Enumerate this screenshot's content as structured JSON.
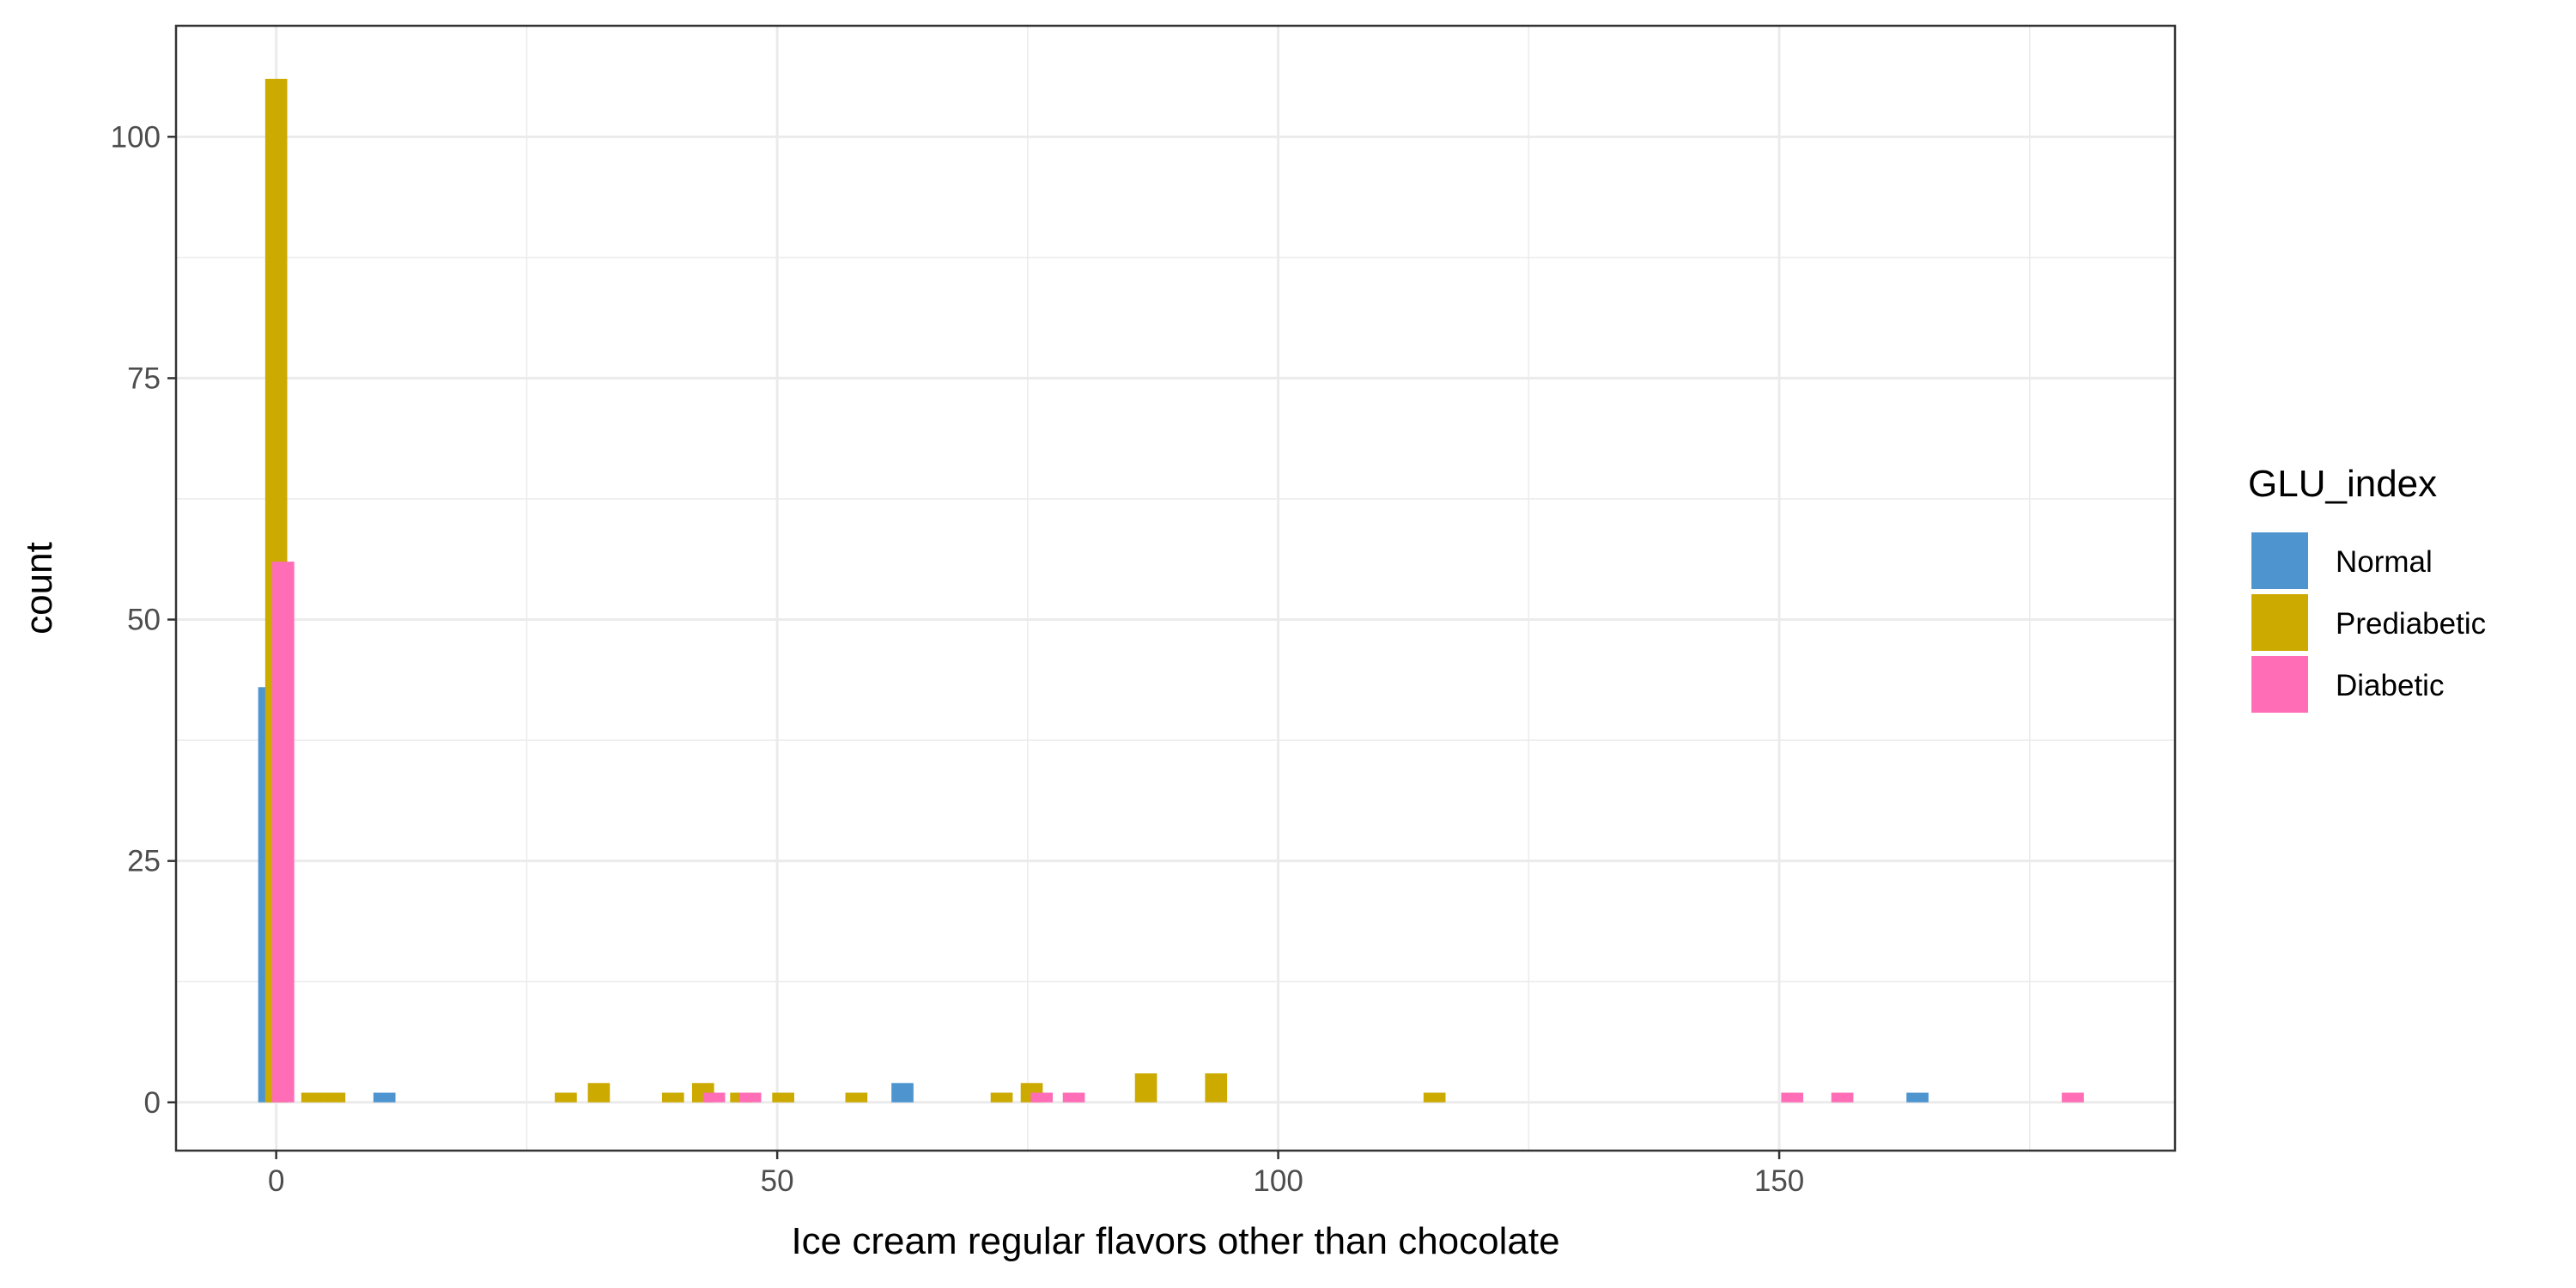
{
  "chart_data": {
    "type": "bar",
    "title": "",
    "xlabel": "Ice cream regular flavors other than chocolate",
    "ylabel": "count",
    "xlim": [
      -10,
      189.5
    ],
    "ylim": [
      -5,
      111.5
    ],
    "x_ticks": [
      0,
      50,
      100,
      150
    ],
    "y_ticks": [
      0,
      25,
      50,
      75,
      100
    ],
    "x_minor_ticks": [
      25,
      75,
      125,
      175
    ],
    "y_minor_ticks": [
      12.5,
      37.5,
      62.5,
      87.5
    ],
    "grid": true,
    "bar_width": 2.2,
    "legend": {
      "title": "GLU_index",
      "position": "right",
      "entries": [
        {
          "label": "Normal",
          "color": "#4E95D0"
        },
        {
          "label": "Prediabetic",
          "color": "#CCAA00"
        },
        {
          "label": "Diabetic",
          "color": "#FF6DB6"
        }
      ]
    },
    "series": [
      {
        "name": "Normal",
        "color": "#4E95D0",
        "points": [
          {
            "x": -0.7,
            "y": 43
          },
          {
            "x": 10.8,
            "y": 1
          },
          {
            "x": 62.5,
            "y": 2
          },
          {
            "x": 163.8,
            "y": 1
          }
        ]
      },
      {
        "name": "Prediabetic",
        "color": "#CCAA00",
        "points": [
          {
            "x": 0,
            "y": 106
          },
          {
            "x": 3.6,
            "y": 1
          },
          {
            "x": 5.8,
            "y": 1
          },
          {
            "x": 28.9,
            "y": 1
          },
          {
            "x": 32.2,
            "y": 2
          },
          {
            "x": 39.6,
            "y": 1
          },
          {
            "x": 42.6,
            "y": 2
          },
          {
            "x": 46.4,
            "y": 1
          },
          {
            "x": 50.6,
            "y": 1
          },
          {
            "x": 57.9,
            "y": 1
          },
          {
            "x": 72.4,
            "y": 1
          },
          {
            "x": 75.4,
            "y": 2
          },
          {
            "x": 86.8,
            "y": 3
          },
          {
            "x": 93.8,
            "y": 3
          },
          {
            "x": 115.6,
            "y": 1
          }
        ]
      },
      {
        "name": "Diabetic",
        "color": "#FF6DB6",
        "points": [
          {
            "x": 0.7,
            "y": 56
          },
          {
            "x": 43.7,
            "y": 1
          },
          {
            "x": 47.3,
            "y": 1
          },
          {
            "x": 76.4,
            "y": 1
          },
          {
            "x": 79.6,
            "y": 1
          },
          {
            "x": 151.3,
            "y": 1
          },
          {
            "x": 156.3,
            "y": 1
          },
          {
            "x": 179.3,
            "y": 1
          }
        ]
      }
    ]
  }
}
